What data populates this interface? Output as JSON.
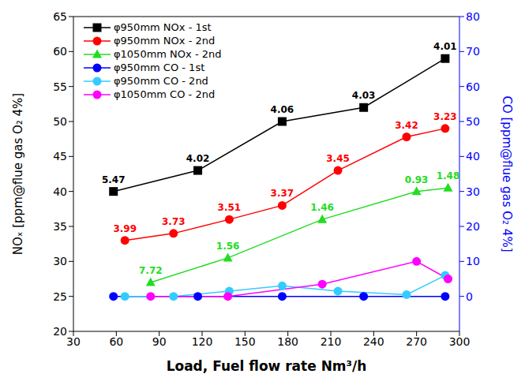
{
  "chart_data": {
    "type": "line",
    "xlabel": "Load, Fuel flow rate Nm³/h",
    "ylabel": "NOₓ [ppm@flue gas O₂ 4%]",
    "y2label": "CO [ppm@flue gas O₂ 4%]",
    "xlim": [
      30,
      300
    ],
    "xticks": [
      30,
      60,
      90,
      120,
      150,
      180,
      210,
      240,
      270,
      300
    ],
    "ylim": [
      20,
      65
    ],
    "yticks": [
      20,
      25,
      30,
      35,
      40,
      45,
      50,
      55,
      60,
      65
    ],
    "y2lim": [
      -10,
      80
    ],
    "y2ticks": [
      0,
      10,
      20,
      30,
      40,
      50,
      60,
      70,
      80
    ],
    "grid": false,
    "legend": "upper left",
    "series": [
      {
        "name": "φ950mm NOx - 1st",
        "color": "#000000",
        "marker": "square",
        "x": [
          58,
          117,
          176,
          233,
          290
        ],
        "values": [
          40,
          43,
          50,
          52,
          59
        ],
        "annotations": [
          "5.47",
          "4.02",
          "4.06",
          "4.03",
          "4.01"
        ]
      },
      {
        "name": "φ950mm NOx - 2nd",
        "color": "#ff0000",
        "marker": "circle",
        "x": [
          66,
          100,
          139,
          176,
          215,
          263,
          290
        ],
        "values": [
          33,
          34,
          36,
          38,
          43,
          47.8,
          49
        ],
        "annotations": [
          "3.99",
          "3.73",
          "3.51",
          "3.37",
          "3.45",
          "3.42",
          "3.23"
        ]
      },
      {
        "name": "φ1050mm NOx - 2nd",
        "color": "#22dd22",
        "marker": "triangle",
        "x": [
          84,
          138,
          204,
          270,
          292
        ],
        "values": [
          27,
          30.5,
          36,
          40,
          40.5
        ],
        "annotations": [
          "7.72",
          "1.56",
          "1.46",
          "0.93",
          "1.48"
        ]
      },
      {
        "name": "φ950mm CO - 1st",
        "color": "#0000ff",
        "marker": "circle",
        "axis": "y2",
        "x": [
          58,
          117,
          176,
          233,
          290
        ],
        "values": [
          0,
          0,
          0,
          0,
          0
        ]
      },
      {
        "name": "φ950mm CO - 2nd",
        "color": "#33ccff",
        "marker": "circle",
        "axis": "y2",
        "x": [
          66,
          100,
          139,
          176,
          215,
          263,
          290
        ],
        "values": [
          0,
          0,
          1.5,
          3,
          1.5,
          0.5,
          6
        ]
      },
      {
        "name": "φ1050mm CO - 2nd",
        "color": "#ff00ff",
        "marker": "circle",
        "axis": "y2",
        "x": [
          84,
          138,
          204,
          270,
          292
        ],
        "values": [
          0,
          0,
          3.5,
          10,
          5
        ]
      }
    ]
  }
}
